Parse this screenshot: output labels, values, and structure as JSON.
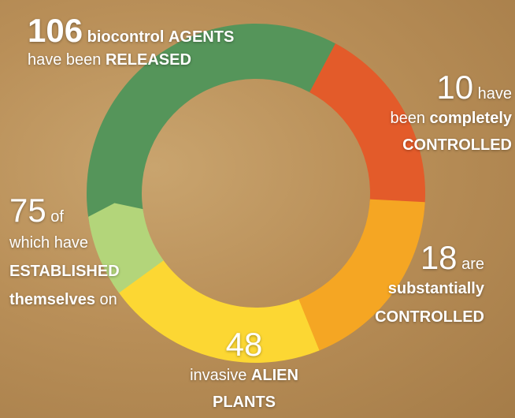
{
  "items": [
    {
      "number": "106",
      "parts": [
        "biocontrol",
        "AGENTS",
        "have been",
        "RELEASED"
      ]
    },
    {
      "number": "10",
      "parts": [
        "have",
        "been",
        "completely",
        "CONTROLLED"
      ]
    },
    {
      "number": "18",
      "parts": [
        "are",
        "substantially",
        "CONTROLLED"
      ]
    },
    {
      "number": "48",
      "parts": [
        "invasive",
        "ALIEN",
        "PLANTS"
      ]
    },
    {
      "number": "75",
      "parts": [
        "of",
        "which have",
        "ESTABLISHED",
        "themselves",
        "on"
      ]
    }
  ]
}
